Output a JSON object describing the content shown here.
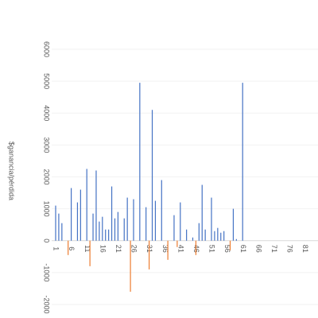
{
  "chart_data": {
    "type": "bar",
    "y_label": "$ganancia/pérdida",
    "categories": [
      "1",
      null,
      null,
      null,
      null,
      "6",
      null,
      null,
      null,
      null,
      "11",
      null,
      null,
      null,
      null,
      "16",
      null,
      null,
      null,
      null,
      "21",
      null,
      null,
      null,
      null,
      "26",
      null,
      null,
      null,
      null,
      "31",
      null,
      null,
      null,
      null,
      "36",
      null,
      null,
      null,
      null,
      "41",
      null,
      null,
      null,
      null,
      "46",
      null,
      null,
      null,
      null,
      "51",
      null,
      null,
      null,
      null,
      "56",
      null,
      null,
      null,
      null,
      "61",
      null,
      null,
      null,
      null,
      "66",
      null,
      null,
      null,
      null,
      "71",
      null,
      null,
      null,
      null,
      "76",
      null,
      null,
      null,
      null,
      "81",
      null,
      null,
      null,
      null
    ],
    "values": [
      1100,
      850,
      550,
      0,
      -450,
      1650,
      0,
      1200,
      1600,
      0,
      2250,
      -800,
      850,
      2200,
      600,
      750,
      350,
      350,
      1700,
      700,
      900,
      0,
      700,
      1350,
      -1600,
      1300,
      0,
      4950,
      0,
      1050,
      -900,
      4100,
      1250,
      0,
      1900,
      0,
      -600,
      0,
      800,
      -200,
      1200,
      0,
      350,
      0,
      100,
      -450,
      550,
      1750,
      350,
      0,
      1350,
      300,
      400,
      250,
      300,
      0,
      -300,
      1000,
      50,
      0,
      4950,
      null,
      null,
      null,
      null,
      null,
      null,
      null,
      null,
      null,
      null,
      null,
      null,
      null,
      null,
      null,
      null,
      null,
      null,
      null,
      null,
      null,
      null,
      null,
      null
    ],
    "color": "#4472c4",
    "negative_color": "#ed7d31",
    "ylim": [
      -2000,
      6000
    ],
    "yticks": [
      -2000,
      -1000,
      0,
      1000,
      2000,
      3000,
      4000,
      5000,
      6000
    ],
    "grid": true
  }
}
